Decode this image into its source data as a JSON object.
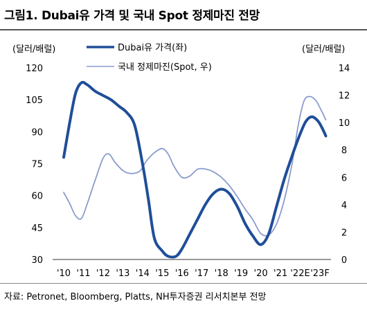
{
  "page": {
    "title": "그림1. Dubai유 가격 및 국내 Spot 정제마진 전망",
    "source": "자료: Petronet, Bloomberg, Platts, NH투자증권 리서치본부 전망"
  },
  "chart_data": {
    "type": "line",
    "categories": [
      "'10",
      "'11",
      "'12",
      "'13",
      "'14",
      "'15",
      "'16",
      "'17",
      "'18",
      "'19",
      "'20",
      "'21",
      "'22E",
      "'23F"
    ],
    "y_left": {
      "unit_label": "(달러/배럴)",
      "range": [
        30,
        120
      ],
      "ticks": [
        30,
        45,
        60,
        75,
        90,
        105,
        120
      ]
    },
    "y_right": {
      "unit_label": "(달러/배럴)",
      "range": [
        0,
        14
      ],
      "ticks": [
        0,
        2,
        4,
        6,
        8,
        10,
        12,
        14
      ]
    },
    "grid": false,
    "legend_position": "top-center",
    "series": [
      {
        "name": "Dubai유 가격(좌)",
        "axis": "left",
        "color": "#1f4e99",
        "line_weight": "thick",
        "x": [
          0,
          0.3,
          0.6,
          0.9,
          1.2,
          1.6,
          2.0,
          2.4,
          2.8,
          3.2,
          3.6,
          4.0,
          4.3,
          4.6,
          5.0,
          5.3,
          5.7,
          6.0,
          6.4,
          6.8,
          7.2,
          7.6,
          8.0,
          8.4,
          8.8,
          9.2,
          9.6,
          10.0,
          10.4,
          10.8,
          11.2,
          11.6,
          12.0,
          12.3,
          12.6,
          12.9,
          13.1,
          13.3
        ],
        "y": [
          78,
          94,
          108,
          113,
          112,
          109,
          107,
          105,
          102,
          99,
          93,
          75,
          58,
          40,
          34,
          31.5,
          31.5,
          35,
          42,
          49,
          56,
          61,
          63,
          61,
          55,
          47,
          41,
          37,
          42,
          55,
          68,
          79,
          89,
          95,
          97,
          95,
          92,
          88
        ]
      },
      {
        "name": "국내 정제마진(Spot, 우)",
        "axis": "right",
        "color": "#8a9ccd",
        "line_weight": "thin",
        "x": [
          0,
          0.3,
          0.6,
          0.9,
          1.2,
          1.6,
          2.0,
          2.3,
          2.6,
          3.0,
          3.3,
          3.6,
          3.9,
          4.2,
          4.6,
          5.0,
          5.3,
          5.6,
          6.0,
          6.4,
          6.8,
          7.2,
          7.6,
          8.0,
          8.4,
          8.8,
          9.2,
          9.6,
          10.0,
          10.4,
          10.8,
          11.2,
          11.6,
          11.9,
          12.2,
          12.5,
          12.8,
          13.1,
          13.3
        ],
        "y": [
          4.9,
          4.1,
          3.2,
          3.0,
          4.1,
          5.8,
          7.4,
          7.7,
          7.1,
          6.5,
          6.3,
          6.3,
          6.5,
          7.2,
          7.8,
          8.1,
          7.7,
          6.8,
          6.0,
          6.1,
          6.6,
          6.6,
          6.4,
          6.0,
          5.4,
          4.6,
          3.7,
          2.9,
          1.9,
          1.8,
          2.6,
          4.4,
          7.1,
          9.8,
          11.6,
          11.9,
          11.6,
          10.8,
          10.2
        ]
      }
    ]
  }
}
